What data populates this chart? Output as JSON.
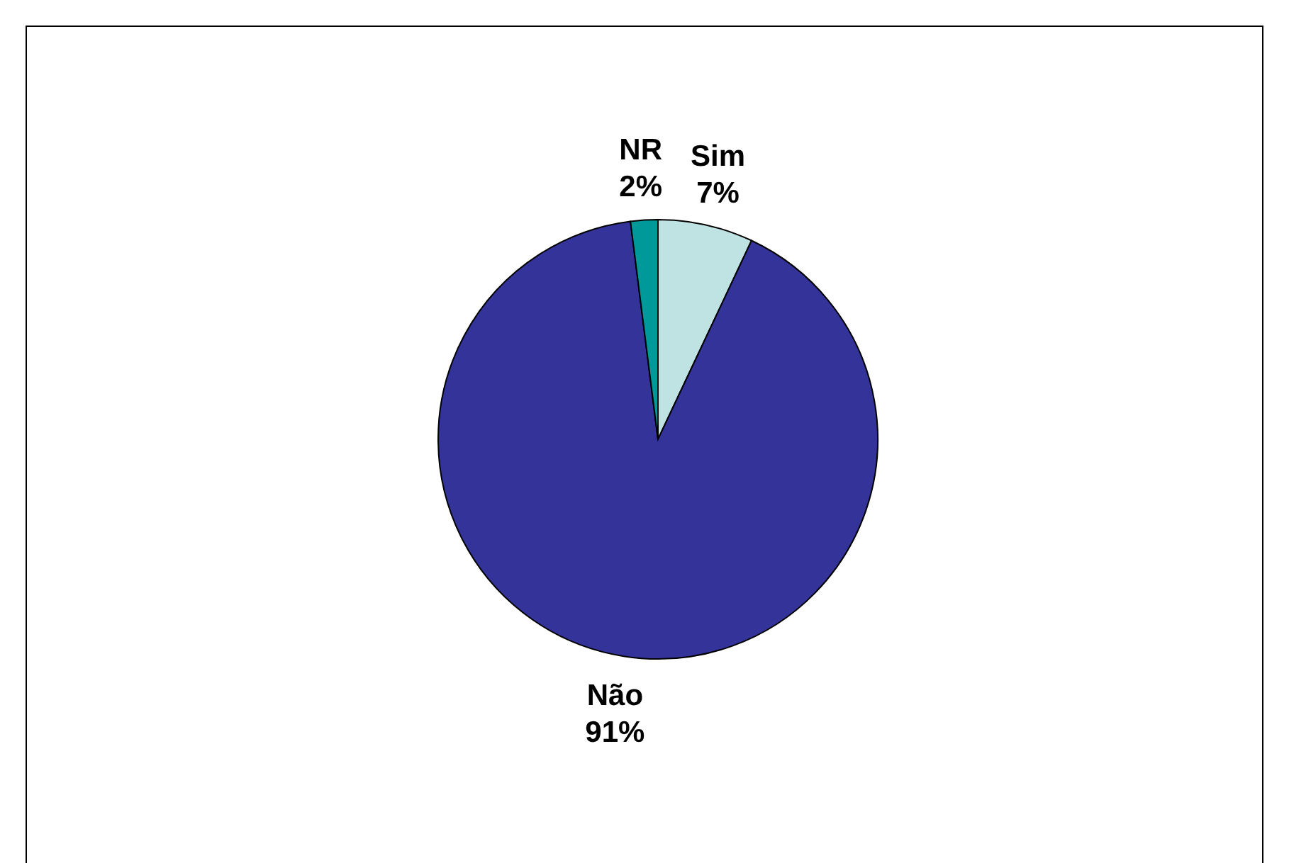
{
  "chart_data": {
    "type": "pie",
    "categories": [
      "Sim",
      "Não",
      "NR"
    ],
    "values": [
      7,
      91,
      2
    ],
    "value_labels": [
      "7%",
      "91%",
      "2%"
    ],
    "colors": [
      "#bfe3e3",
      "#333399",
      "#009999"
    ]
  }
}
